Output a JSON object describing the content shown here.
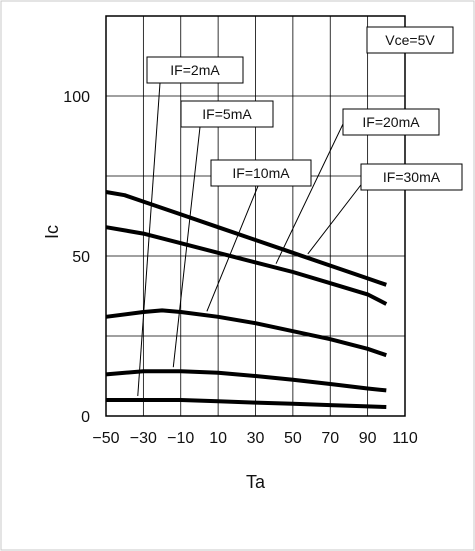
{
  "chart_data": {
    "type": "line",
    "title": "",
    "xlabel": "Ta",
    "ylabel": "Ic",
    "xlim": [
      -50,
      110
    ],
    "ylim": [
      0,
      125
    ],
    "x_ticks": [
      "-50",
      "-30",
      "-10",
      "10",
      "30",
      "50",
      "70",
      "90",
      "110"
    ],
    "y_ticks": [
      "0",
      "50",
      "100"
    ],
    "condition_label": "Vce=5V",
    "grid": true,
    "series": [
      {
        "name": "IF=2mA",
        "x": [
          -50,
          -30,
          -10,
          10,
          30,
          50,
          70,
          90,
          100
        ],
        "y": [
          5,
          5,
          5,
          4.6,
          4.2,
          3.8,
          3.4,
          3.0,
          2.8
        ]
      },
      {
        "name": "IF=5mA",
        "x": [
          -50,
          -30,
          -20,
          -10,
          10,
          30,
          50,
          70,
          90,
          100
        ],
        "y": [
          13,
          14,
          14,
          14,
          13.5,
          12.5,
          11.3,
          10,
          8.6,
          8
        ]
      },
      {
        "name": "IF=10mA",
        "x": [
          -50,
          -30,
          -20,
          -10,
          10,
          30,
          50,
          70,
          90,
          100
        ],
        "y": [
          31,
          32.5,
          33,
          32.5,
          31,
          29,
          26.5,
          24,
          21,
          19
        ]
      },
      {
        "name": "IF=20mA",
        "x": [
          -50,
          -30,
          -10,
          10,
          30,
          50,
          70,
          90,
          100
        ],
        "y": [
          59,
          57,
          54,
          51,
          48,
          45,
          41.5,
          38,
          35
        ]
      },
      {
        "name": "IF=30mA",
        "x": [
          -50,
          -40,
          -30,
          -10,
          10,
          30,
          50,
          70,
          90,
          100
        ],
        "y": [
          70,
          69,
          67,
          63,
          59,
          55,
          51,
          47,
          43,
          41
        ]
      }
    ],
    "annotations": [
      {
        "text": "IF=2mA",
        "series": 0
      },
      {
        "text": "IF=5mA",
        "series": 1
      },
      {
        "text": "IF=10mA",
        "series": 2
      },
      {
        "text": "IF=20mA",
        "series": 3
      },
      {
        "text": "IF=30mA",
        "series": 4
      }
    ]
  }
}
